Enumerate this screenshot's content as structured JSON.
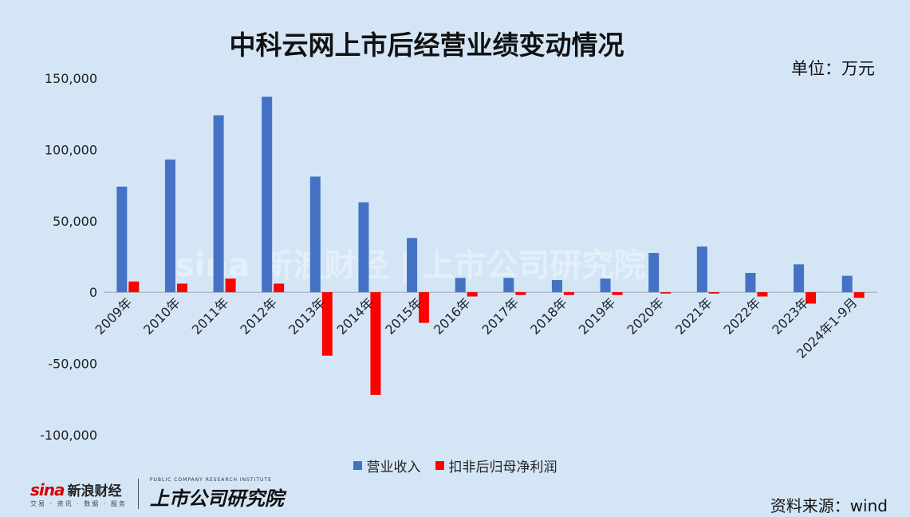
{
  "title": "中科云网上市后经营业绩变动情况",
  "unit_label": "单位：万元",
  "source_label": "资料来源：wind",
  "brand": {
    "sina_word": "sina",
    "sina_cn": "新浪财经",
    "sina_sub": "交易 · 资讯 · 数据 · 服务",
    "inst_en": "PUBLIC COMPANY RESEARCH INSTITUTE",
    "inst_cn": "上市公司研究院"
  },
  "watermark": "sina 新浪财经 | 上市公司研究院",
  "colors": {
    "revenue": "#4472c4",
    "profit": "#ff0000",
    "background": "#d4e6f6"
  },
  "chart_data": {
    "type": "bar",
    "title": "中科云网上市后经营业绩变动情况",
    "categories": [
      "2009年",
      "2010年",
      "2011年",
      "2012年",
      "2013年",
      "2014年",
      "2015年",
      "2016年",
      "2017年",
      "2018年",
      "2019年",
      "2020年",
      "2021年",
      "2022年",
      "2023年",
      "2024年1-9月"
    ],
    "series": [
      {
        "name": "营业收入",
        "values": [
          74000,
          93000,
          124000,
          137000,
          81000,
          63000,
          38000,
          10000,
          10000,
          8500,
          9500,
          27500,
          32000,
          13500,
          19500,
          11500
        ]
      },
      {
        "name": "扣非后归母净利润",
        "values": [
          7500,
          6000,
          9500,
          6000,
          -44500,
          -72000,
          -21500,
          -3000,
          -2000,
          -2000,
          -2000,
          -1000,
          -1000,
          -3000,
          -8000,
          -4000
        ]
      }
    ],
    "ylim": [
      -100000,
      150000
    ],
    "yticks": [
      -100000,
      -50000,
      0,
      50000,
      100000,
      150000
    ],
    "ytick_labels": [
      "-100,000",
      "-50,000",
      "0",
      "50,000",
      "100,000",
      "150,000"
    ],
    "grid": false,
    "legend": "bottom"
  }
}
